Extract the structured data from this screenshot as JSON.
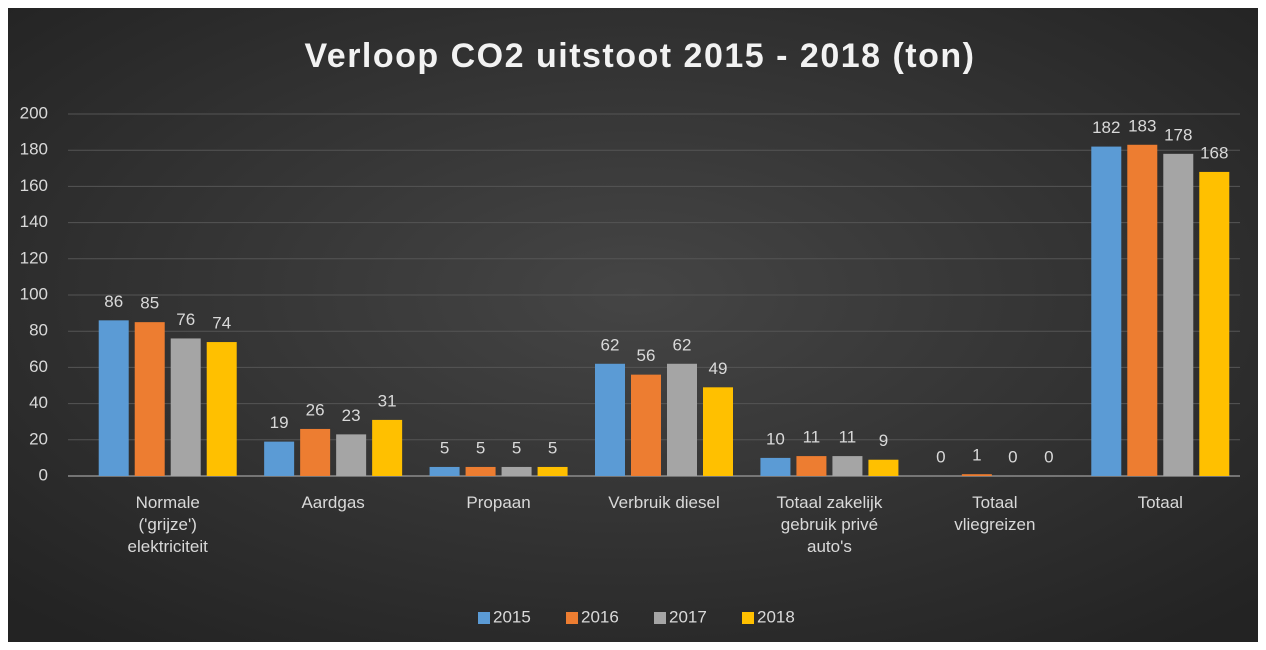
{
  "chart_data": {
    "type": "bar",
    "title": "Verloop CO2 uitstoot 2015 - 2018 (ton)",
    "categories": [
      "Normale ('grijze') elektriciteit",
      "Aardgas",
      "Propaan",
      "Verbruik diesel",
      "Totaal zakelijk gebruik privé auto's",
      "Totaal vliegreizen",
      "Totaal"
    ],
    "series": [
      {
        "name": "2015",
        "color": "#5b9bd5",
        "values": [
          86,
          19,
          5,
          62,
          10,
          0,
          182
        ]
      },
      {
        "name": "2016",
        "color": "#ed7d31",
        "values": [
          85,
          26,
          5,
          56,
          11,
          1,
          183
        ]
      },
      {
        "name": "2017",
        "color": "#a5a5a5",
        "values": [
          76,
          23,
          5,
          62,
          11,
          0,
          178
        ]
      },
      {
        "name": "2018",
        "color": "#ffc000",
        "values": [
          74,
          31,
          5,
          49,
          9,
          0,
          168
        ]
      }
    ],
    "ylim": [
      0,
      200
    ],
    "yticks": [
      0,
      20,
      40,
      60,
      80,
      100,
      120,
      140,
      160,
      180,
      200
    ],
    "grid": true,
    "legend": "bottom"
  }
}
